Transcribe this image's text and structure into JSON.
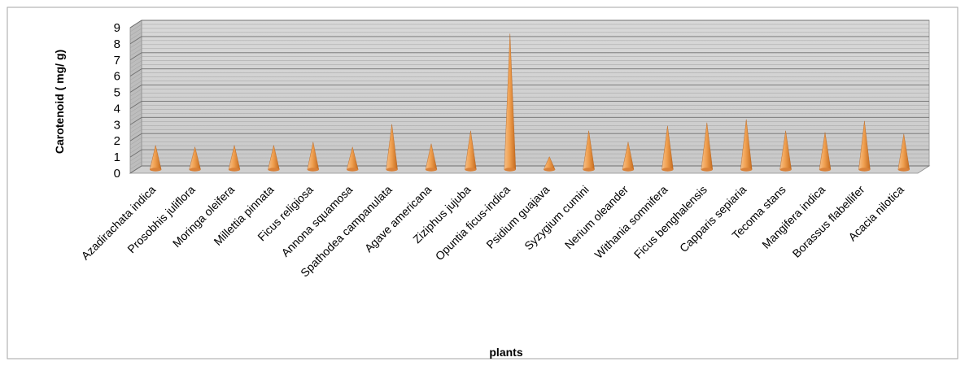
{
  "chart_data": {
    "type": "bar",
    "title": "",
    "xlabel": "plants",
    "ylabel": "Carotenoid ( mg/ g)",
    "ylim": [
      0,
      9
    ],
    "yticks": [
      0,
      1,
      2,
      3,
      4,
      5,
      6,
      7,
      8,
      9
    ],
    "grid": true,
    "legend": "none",
    "bar_style": "3d-cone",
    "bar_color": "#f0a050",
    "categories": [
      "Azadirachata indica",
      "Prosobhis juliflora",
      "Moringa oleifera",
      "Millettia pinnata",
      "Ficus religiosa",
      "Annona squamosa",
      "Spathodea campanulata",
      "Agave americana",
      "Ziziphus jujuba",
      "Opuntia ficus-indica",
      "Psidium guajava",
      "Syzygium cumini",
      "Nerium oleander",
      "Withania somnifera",
      "Ficus benghalensis",
      "Capparis sepiaria",
      "Tecoma stans",
      "Mangifera indica",
      "Borassus flabellifer",
      "Acacia nilotica"
    ],
    "values": [
      1.5,
      1.4,
      1.5,
      1.5,
      1.7,
      1.4,
      2.8,
      1.6,
      2.4,
      8.4,
      0.8,
      2.4,
      1.7,
      2.7,
      2.9,
      3.1,
      2.4,
      2.3,
      3.0,
      2.2
    ]
  }
}
